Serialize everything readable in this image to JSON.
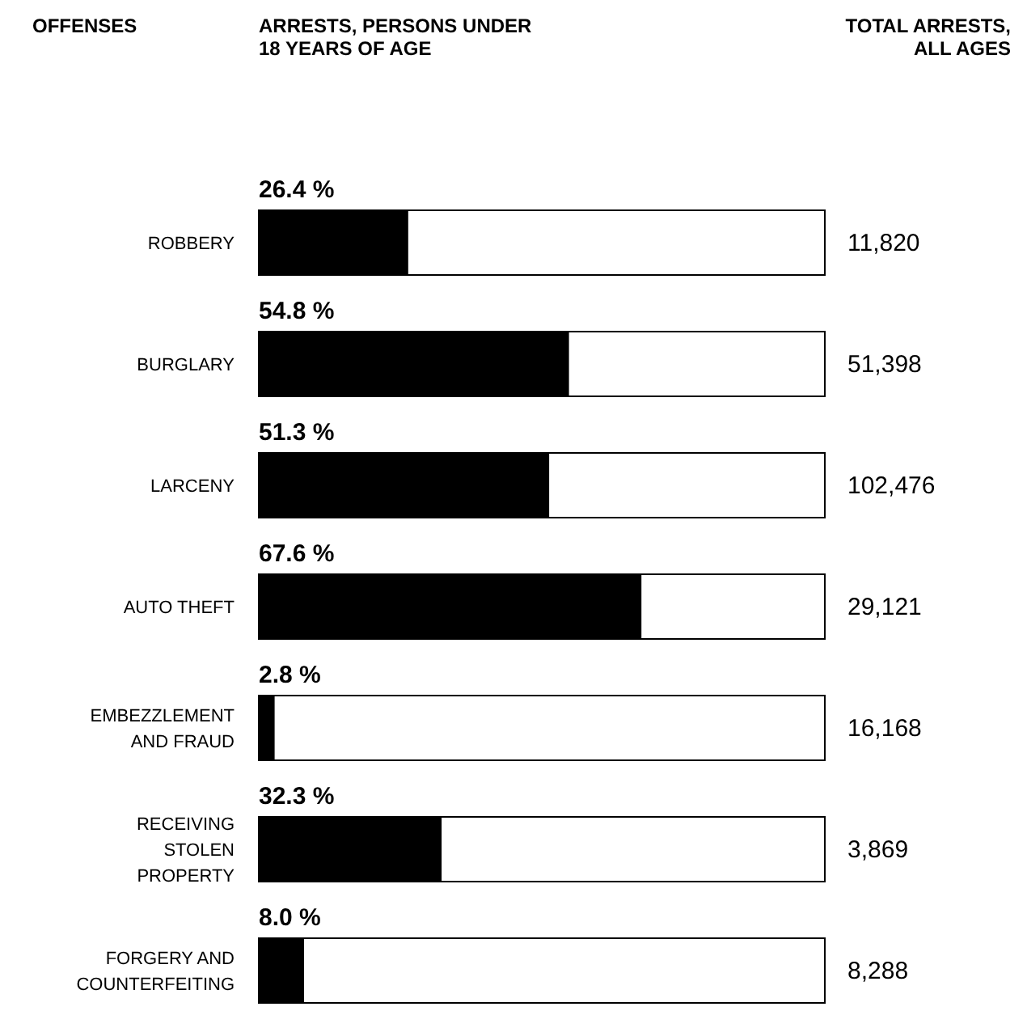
{
  "chart_data": {
    "type": "bar",
    "orientation": "horizontal",
    "categories": [
      "ROBBERY",
      "BURGLARY",
      "LARCENY",
      "AUTO THEFT",
      "EMBEZZLEMENT AND FRAUD",
      "RECEIVING STOLEN PROPERTY",
      "FORGERY AND COUNTERFEITING"
    ],
    "values": [
      26.4,
      54.8,
      51.3,
      67.6,
      2.8,
      32.3,
      8.0
    ],
    "value_labels": [
      "26.4 %",
      "54.8 %",
      "51.3 %",
      "67.6 %",
      "2.8 %",
      "32.3 %",
      "8.0 %"
    ],
    "color": "#000000",
    "xlim": [
      0,
      100
    ],
    "tick_labels": "y",
    "annotations": [
      "OFFENSES",
      "ARRESTS, PERSONS UNDER 18 YEARS OF AGE",
      "TOTAL ARRESTS, ALL AGES",
      "11,820",
      "51,398",
      "102,476",
      "29,121",
      "16,168",
      "3,869",
      "8,288"
    ]
  }
}
